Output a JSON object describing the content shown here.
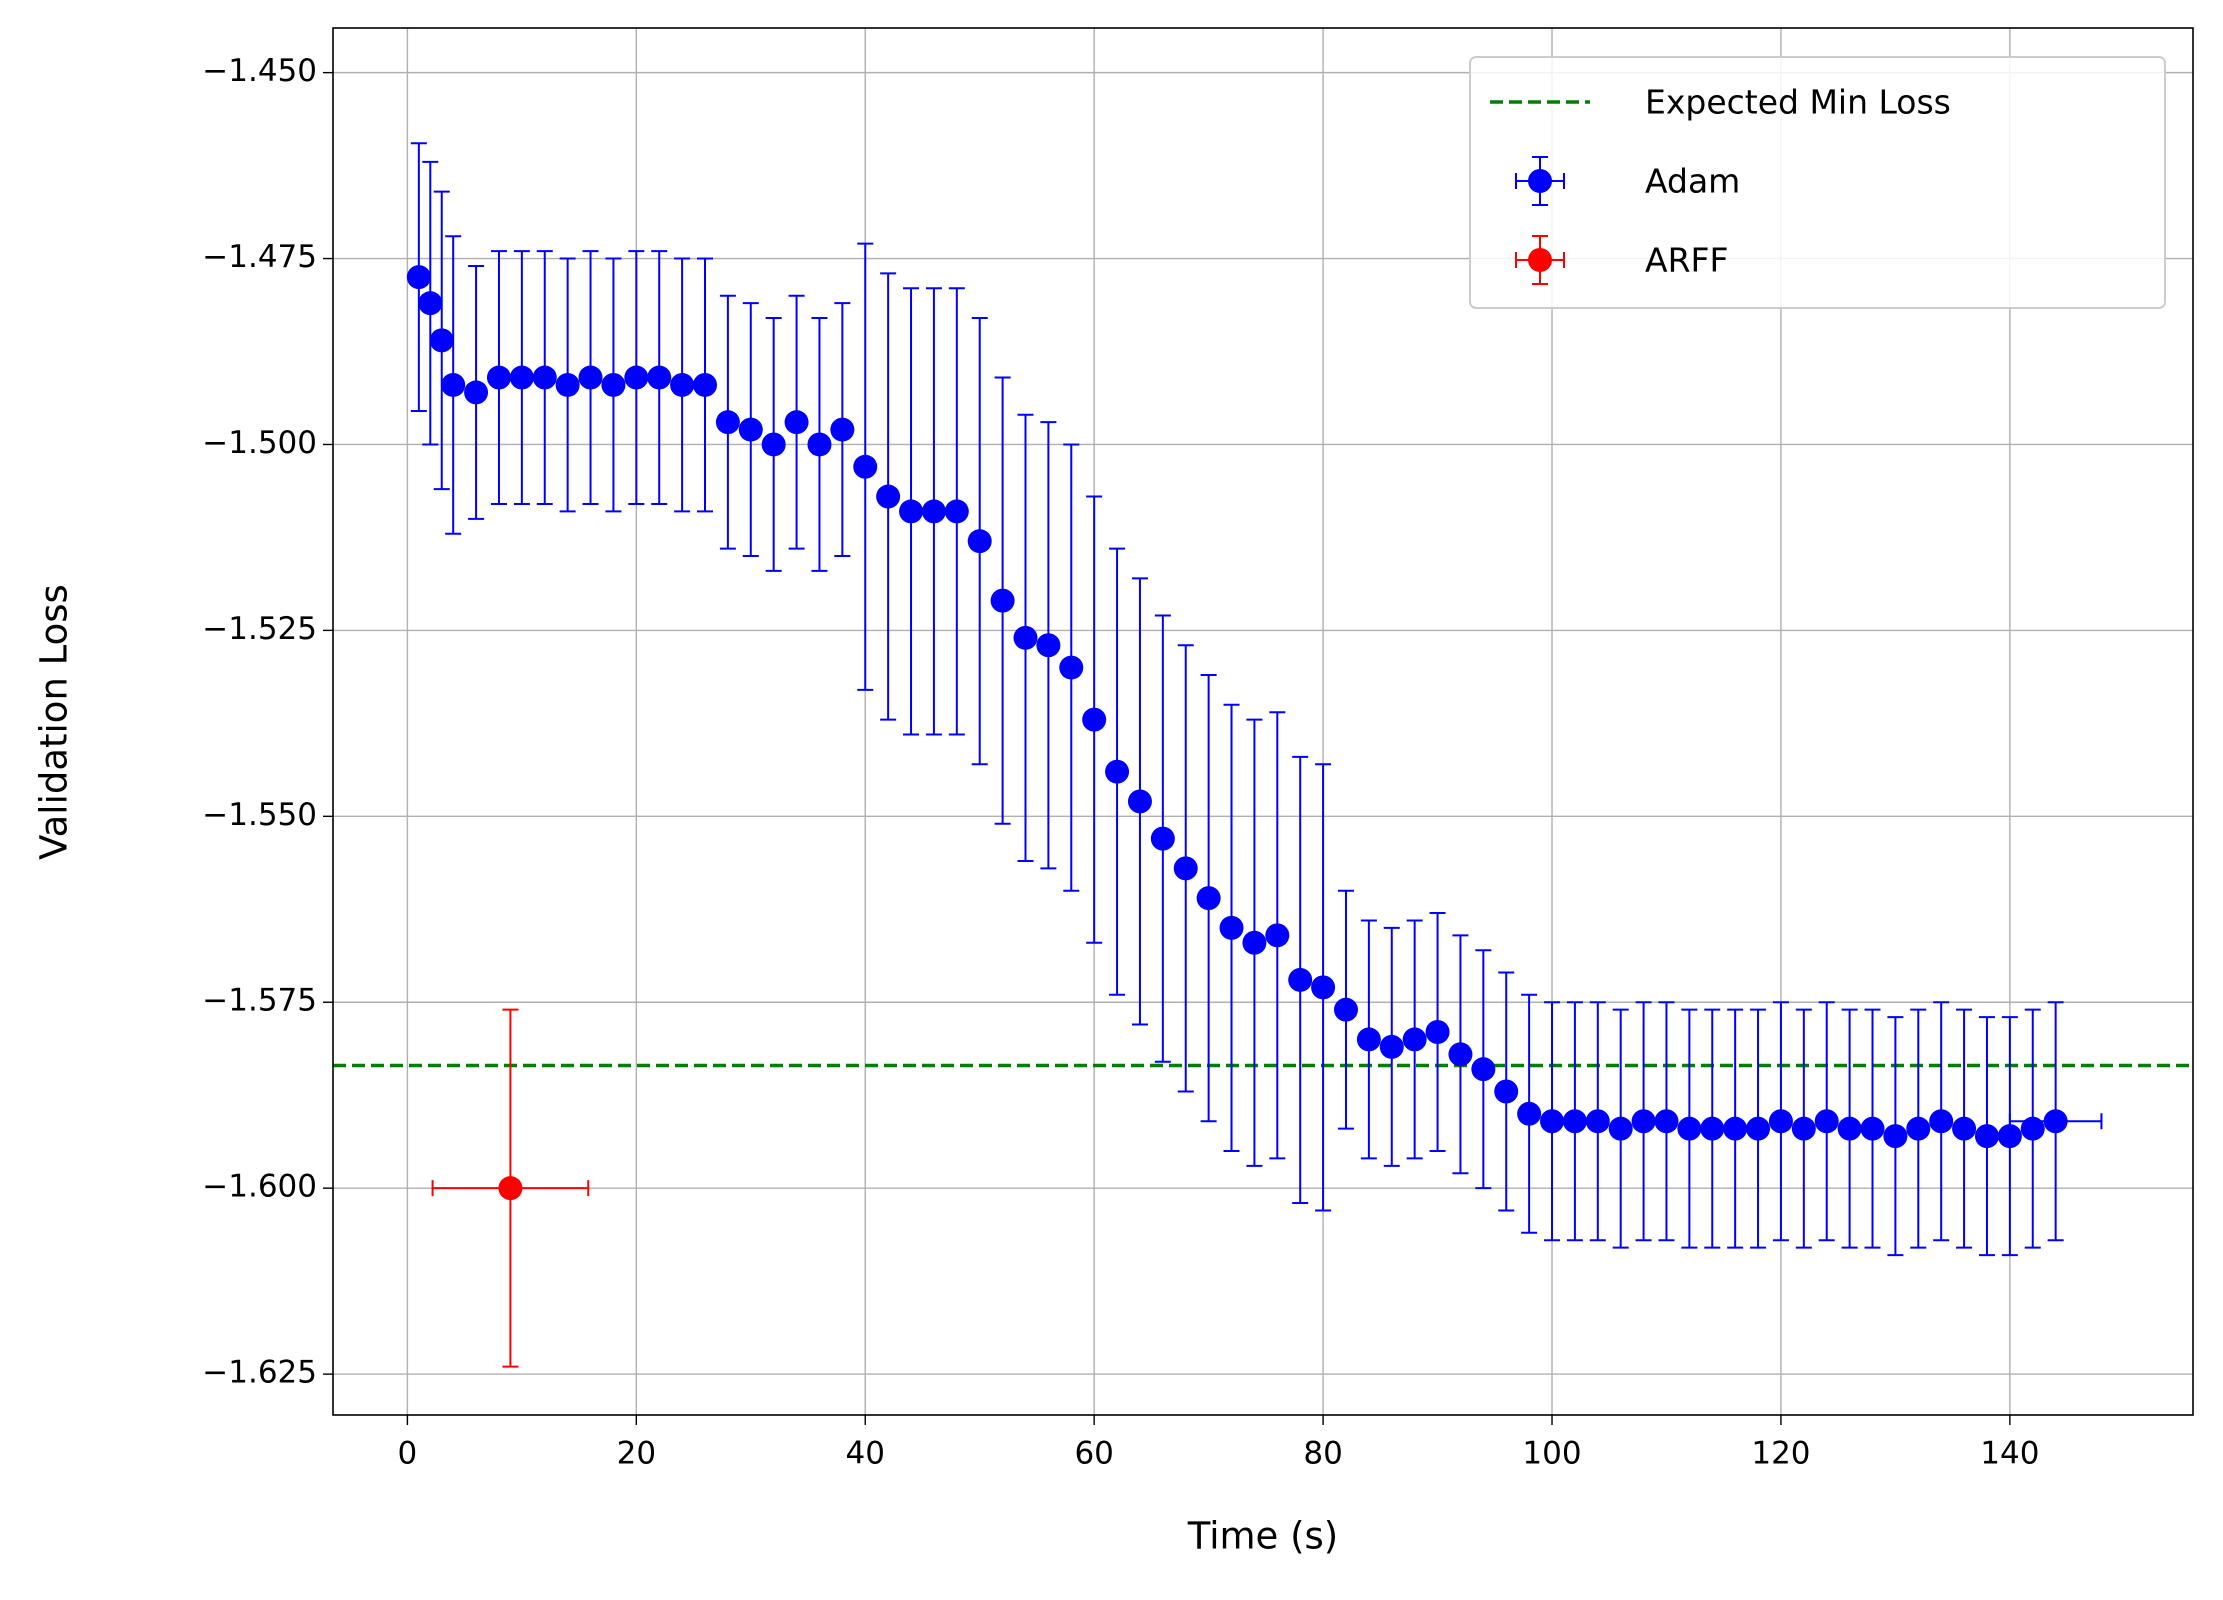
{
  "chart_data": {
    "type": "errorbar",
    "xlabel": "Time (s)",
    "ylabel": "Validation Loss",
    "xlim": [
      -6.5,
      156
    ],
    "ylim": [
      -1.6305,
      -1.444
    ],
    "xticks": [
      0,
      20,
      40,
      60,
      80,
      100,
      120,
      140
    ],
    "yticks": [
      {
        "value": -1.45,
        "label": "−1.450"
      },
      {
        "value": -1.475,
        "label": "−1.475"
      },
      {
        "value": -1.5,
        "label": "−1.500"
      },
      {
        "value": -1.525,
        "label": "−1.525"
      },
      {
        "value": -1.55,
        "label": "−1.550"
      },
      {
        "value": -1.575,
        "label": "−1.575"
      },
      {
        "value": -1.6,
        "label": "−1.600"
      },
      {
        "value": -1.625,
        "label": "−1.625"
      }
    ],
    "grid": true,
    "legend": "upper right",
    "hlines": [
      {
        "name": "Expected Min Loss",
        "value": -1.5835,
        "color": "#008000",
        "style": "dashed"
      }
    ],
    "series": [
      {
        "name": "Adam",
        "color": "#0000ff",
        "x": [
          1,
          2,
          3,
          4,
          6,
          8,
          10,
          12,
          14,
          16,
          18,
          20,
          22,
          24,
          26,
          28,
          30,
          32,
          34,
          36,
          38,
          40,
          42,
          44,
          46,
          48,
          50,
          52,
          54,
          56,
          58,
          60,
          62,
          64,
          66,
          68,
          70,
          72,
          74,
          76,
          78,
          80,
          82,
          84,
          86,
          88,
          90,
          92,
          94,
          96,
          98,
          100,
          102,
          104,
          106,
          108,
          110,
          112,
          114,
          116,
          118,
          120,
          122,
          124,
          126,
          128,
          130,
          132,
          134,
          136,
          138,
          140,
          142,
          144
        ],
        "values": [
          -1.4775,
          -1.481,
          -1.486,
          -1.492,
          -1.493,
          -1.491,
          -1.491,
          -1.491,
          -1.492,
          -1.491,
          -1.492,
          -1.491,
          -1.491,
          -1.492,
          -1.492,
          -1.497,
          -1.498,
          -1.5,
          -1.497,
          -1.5,
          -1.498,
          -1.503,
          -1.507,
          -1.509,
          -1.509,
          -1.509,
          -1.513,
          -1.521,
          -1.526,
          -1.527,
          -1.53,
          -1.537,
          -1.544,
          -1.548,
          -1.553,
          -1.557,
          -1.561,
          -1.565,
          -1.567,
          -1.566,
          -1.572,
          -1.573,
          -1.576,
          -1.58,
          -1.581,
          -1.58,
          -1.579,
          -1.582,
          -1.584,
          -1.587,
          -1.59,
          -1.591,
          -1.591,
          -1.591,
          -1.592,
          -1.591,
          -1.591,
          -1.592,
          -1.592,
          -1.592,
          -1.592,
          -1.591,
          -1.592,
          -1.591,
          -1.592,
          -1.592,
          -1.593,
          -1.592,
          -1.591,
          -1.592,
          -1.593,
          -1.593,
          -1.592,
          -1.591
        ],
        "yerr": [
          0.018,
          0.019,
          0.02,
          0.02,
          0.017,
          0.017,
          0.017,
          0.017,
          0.017,
          0.017,
          0.017,
          0.017,
          0.017,
          0.017,
          0.017,
          0.017,
          0.017,
          0.017,
          0.017,
          0.017,
          0.017,
          0.03,
          0.03,
          0.03,
          0.03,
          0.03,
          0.03,
          0.03,
          0.03,
          0.03,
          0.03,
          0.03,
          0.03,
          0.03,
          0.03,
          0.03,
          0.03,
          0.03,
          0.03,
          0.03,
          0.03,
          0.03,
          0.016,
          0.016,
          0.016,
          0.016,
          0.016,
          0.016,
          0.016,
          0.016,
          0.016,
          0.016,
          0.016,
          0.016,
          0.016,
          0.016,
          0.016,
          0.016,
          0.016,
          0.016,
          0.016,
          0.016,
          0.016,
          0.016,
          0.016,
          0.016,
          0.016,
          0.016,
          0.016,
          0.016,
          0.016,
          0.016,
          0.016,
          0.016
        ],
        "xerr": [
          0.5,
          0.5,
          0.5,
          0.5,
          0.5,
          0.5,
          0.5,
          0.5,
          0.5,
          0.5,
          0.5,
          0.5,
          0.5,
          0.5,
          0.5,
          0.5,
          0.5,
          0.5,
          0.5,
          0.5,
          0.5,
          0.5,
          0.5,
          0.5,
          0.5,
          0.5,
          0.5,
          0.5,
          0.5,
          0.5,
          0.5,
          0.5,
          0.5,
          0.5,
          0.5,
          0.5,
          0.5,
          0.5,
          0.5,
          0.5,
          0.5,
          0.5,
          0.5,
          0.5,
          0.5,
          0.5,
          0.5,
          0.5,
          0.5,
          0.5,
          0.5,
          0.5,
          0.5,
          0.5,
          0.5,
          0.5,
          0.5,
          0.5,
          0.5,
          0.5,
          0.5,
          0.5,
          0.5,
          0.5,
          0.5,
          0.5,
          0.5,
          0.5,
          0.5,
          0.5,
          0.5,
          0.5,
          0.5,
          4
        ]
      },
      {
        "name": "ARFF",
        "color": "#ff0000",
        "x": [
          9
        ],
        "values": [
          -1.6
        ],
        "yerr": [
          0.024
        ],
        "xerr": [
          6.8
        ]
      }
    ]
  }
}
